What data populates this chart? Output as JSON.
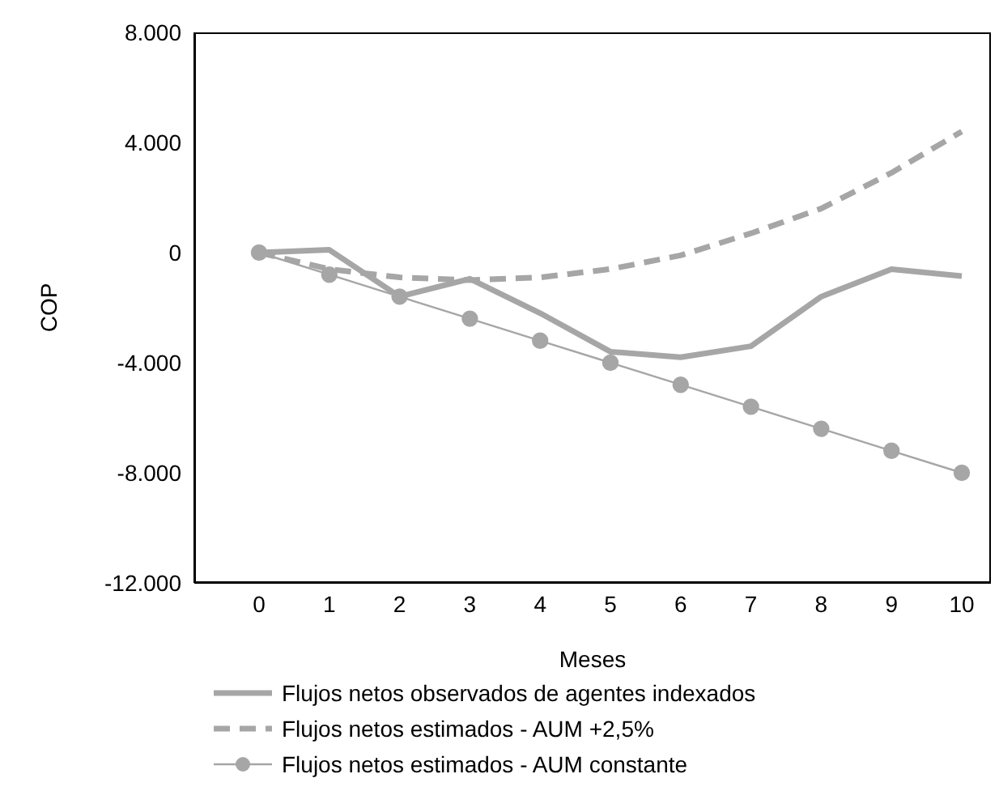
{
  "chart_data": {
    "type": "line",
    "xlabel": "Meses",
    "ylabel": "COP",
    "categories": [
      "0",
      "1",
      "2",
      "3",
      "4",
      "5",
      "6",
      "7",
      "8",
      "9",
      "10"
    ],
    "series": [
      {
        "name": "Flujos netos observados de agentes indexados",
        "color": "#a6a6a6",
        "line_style": "solid",
        "marker": "none",
        "values": [
          0,
          100,
          -1600,
          -950,
          -2200,
          -3600,
          -3800,
          -3400,
          -1600,
          -600,
          -850
        ]
      },
      {
        "name": "Flujos netos estimados - AUM +2,5%",
        "color": "#a6a6a6",
        "line_style": "dashed",
        "marker": "none",
        "values": [
          0,
          -600,
          -900,
          -1000,
          -900,
          -600,
          -100,
          700,
          1600,
          2900,
          4400
        ]
      },
      {
        "name": "Flujos netos estimados - AUM constante",
        "color": "#a6a6a6",
        "line_style": "solid",
        "marker": "circle",
        "values": [
          0,
          -800,
          -1600,
          -2400,
          -3200,
          -4000,
          -4800,
          -5600,
          -6400,
          -7200,
          -8000
        ]
      }
    ],
    "ylim": [
      -12000,
      8000
    ],
    "yticks": [
      {
        "value": -12000,
        "label": "-12.000"
      },
      {
        "value": -8000,
        "label": "-8.000"
      },
      {
        "value": -4000,
        "label": "-4.000"
      },
      {
        "value": 0,
        "label": "0"
      },
      {
        "value": 4000,
        "label": "4.000"
      },
      {
        "value": 8000,
        "label": "8.000"
      }
    ],
    "grid": false,
    "legend": "bottom"
  }
}
